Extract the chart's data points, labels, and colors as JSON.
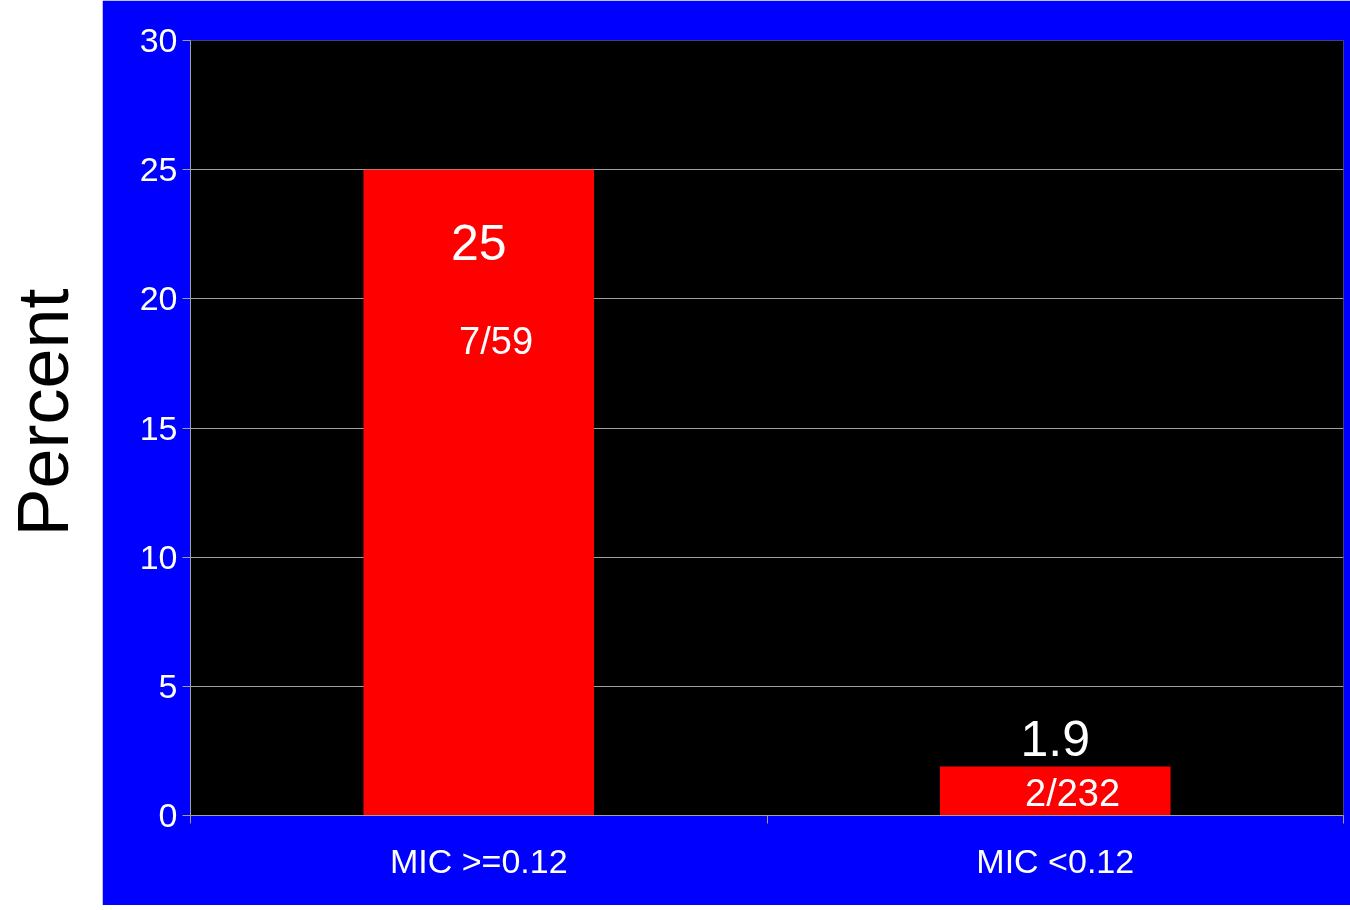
{
  "chart_data": {
    "type": "bar",
    "ylabel": "Percent",
    "categories": [
      "MIC >=0.12",
      "MIC <0.12"
    ],
    "values": [
      25,
      1.9
    ],
    "color": "#ff0000",
    "data_labels": true,
    "ylim": [
      0,
      30
    ],
    "yticks": [
      0,
      5,
      10,
      15,
      20,
      25,
      30
    ],
    "grid": "y",
    "annotations": [
      "7/59",
      "2/232"
    ]
  }
}
